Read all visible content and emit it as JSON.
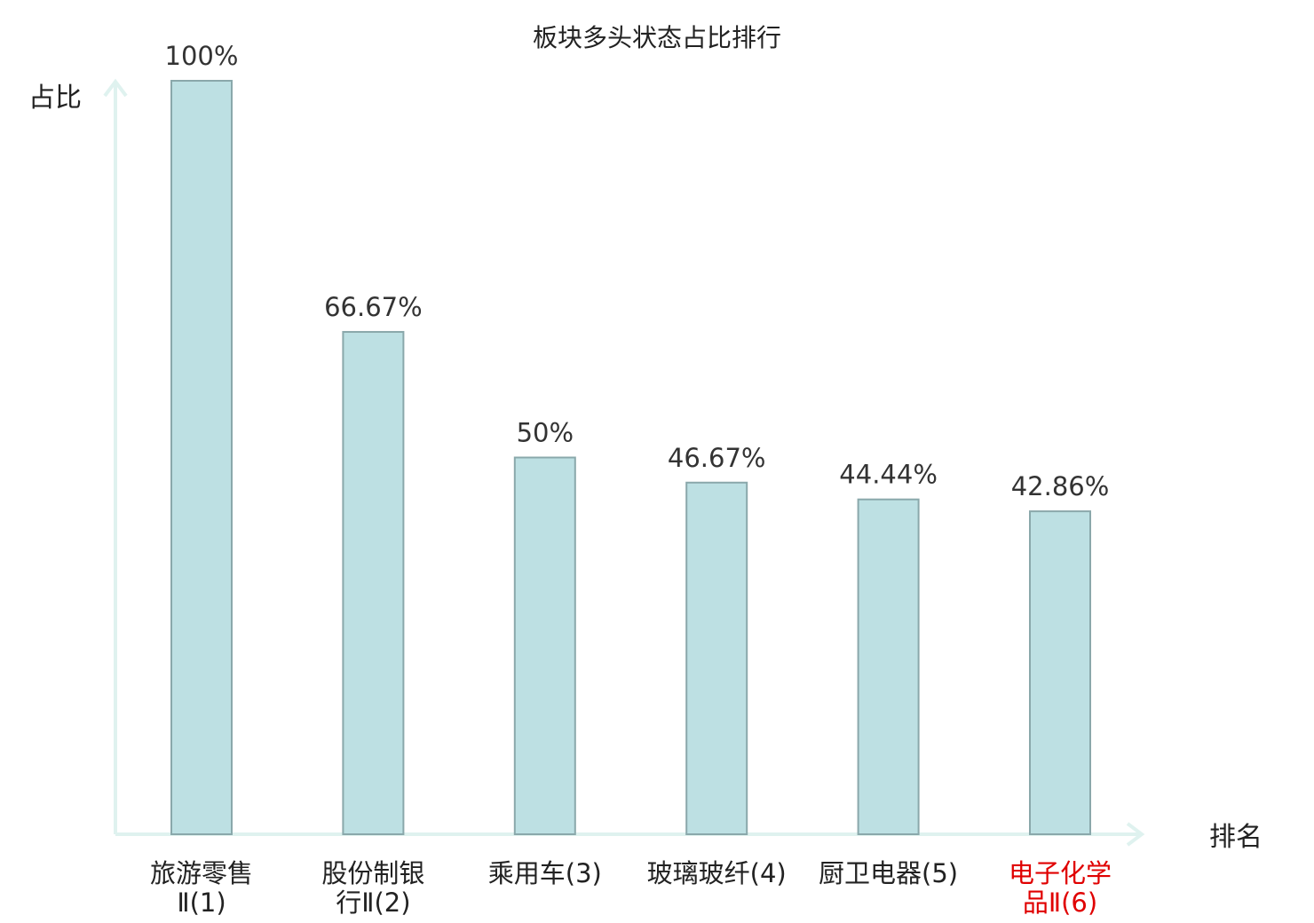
{
  "chart_data": {
    "type": "bar",
    "title": "板块多头状态占比排行",
    "ylabel": "占比",
    "xlabel": "排名",
    "ylim": [
      0,
      100
    ],
    "grid": false,
    "categories": [
      {
        "lines": [
          "旅游零售",
          "Ⅱ(1)"
        ],
        "highlight": false
      },
      {
        "lines": [
          "股份制银",
          "行Ⅱ(2)"
        ],
        "highlight": false
      },
      {
        "lines": [
          "乘用车(3)"
        ],
        "highlight": false
      },
      {
        "lines": [
          "玻璃玻纤(4)"
        ],
        "highlight": false
      },
      {
        "lines": [
          "厨卫电器(5)"
        ],
        "highlight": false
      },
      {
        "lines": [
          "电子化学",
          "品Ⅱ(6)"
        ],
        "highlight": true
      }
    ],
    "values": [
      100,
      66.67,
      50,
      46.67,
      44.44,
      42.86
    ],
    "value_labels": [
      "100%",
      "66.67%",
      "50%",
      "46.67%",
      "44.44%",
      "42.86%"
    ],
    "colors": {
      "bar_fill": "#bde0e3",
      "bar_stroke": "#8aa8ab",
      "axis": "#dff2ef",
      "text": "#333333",
      "highlight_text": "#e00000"
    }
  }
}
